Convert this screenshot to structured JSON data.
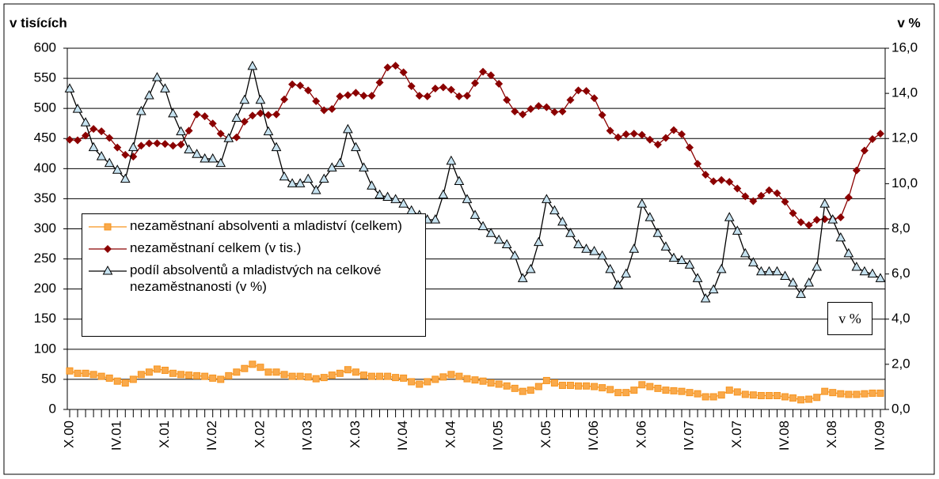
{
  "chart_data": {
    "type": "line",
    "y_label": "v tisících",
    "y2_label": "v %",
    "annotation": "v %",
    "categories": [
      "X.00",
      null,
      null,
      null,
      null,
      null,
      "IV.01",
      null,
      null,
      null,
      null,
      null,
      "X.01",
      null,
      null,
      null,
      null,
      null,
      "IV.02",
      null,
      null,
      null,
      null,
      null,
      "X.02",
      null,
      null,
      null,
      null,
      null,
      "IV.03",
      null,
      null,
      null,
      null,
      null,
      "X.03",
      null,
      null,
      null,
      null,
      null,
      "IV.04",
      null,
      null,
      null,
      null,
      null,
      "X.04",
      null,
      null,
      null,
      null,
      null,
      "IV.05",
      null,
      null,
      null,
      null,
      null,
      "X.05",
      null,
      null,
      null,
      null,
      null,
      "IV.06",
      null,
      null,
      null,
      null,
      null,
      "X.06",
      null,
      null,
      null,
      null,
      null,
      "IV.07",
      null,
      null,
      null,
      null,
      null,
      "X.07",
      null,
      null,
      null,
      null,
      null,
      "IV.08",
      null,
      null,
      null,
      null,
      null,
      "X.08",
      null,
      null,
      null,
      null,
      null,
      "IV.09"
    ],
    "series": [
      {
        "name": "nezaměstnaní absolventi a mladiství (celkem)",
        "color": "#f7941d",
        "marker": "square",
        "values": [
          64,
          60,
          60,
          58,
          55,
          52,
          47,
          44,
          50,
          58,
          62,
          67,
          65,
          60,
          58,
          57,
          56,
          55,
          52,
          50,
          56,
          62,
          68,
          75,
          70,
          62,
          62,
          58,
          55,
          55,
          54,
          51,
          53,
          57,
          60,
          66,
          62,
          57,
          55,
          55,
          55,
          53,
          52,
          46,
          42,
          46,
          50,
          54,
          58,
          55,
          51,
          49,
          47,
          44,
          42,
          39,
          35,
          30,
          32,
          38,
          48,
          44,
          40,
          40,
          39,
          39,
          38,
          36,
          33,
          28,
          28,
          32,
          41,
          38,
          35,
          32,
          31,
          30,
          28,
          26,
          21,
          21,
          24,
          32,
          29,
          25,
          24,
          23,
          23,
          23,
          21,
          19,
          16,
          17,
          20,
          30,
          28,
          26,
          25,
          25,
          26,
          27,
          27
        ]
      },
      {
        "name": "nezaměstnaní celkem (v tis.)",
        "color": "#8b0000",
        "marker": "diamond",
        "values": [
          448,
          447,
          455,
          466,
          462,
          451,
          435,
          423,
          420,
          438,
          442,
          442,
          441,
          438,
          440,
          463,
          490,
          487,
          475,
          458,
          450,
          452,
          478,
          488,
          492,
          489,
          490,
          515,
          540,
          538,
          530,
          512,
          497,
          499,
          520,
          522,
          526,
          521,
          521,
          543,
          568,
          571,
          560,
          537,
          521,
          520,
          533,
          535,
          531,
          520,
          521,
          542,
          561,
          555,
          541,
          514,
          495,
          490,
          499,
          504,
          502,
          494,
          495,
          514,
          530,
          529,
          517,
          489,
          463,
          452,
          457,
          458,
          456,
          448,
          440,
          451,
          464,
          457,
          435,
          408,
          390,
          379,
          381,
          378,
          367,
          354,
          346,
          355,
          364,
          359,
          345,
          326,
          311,
          306,
          315,
          316,
          316,
          319,
          352,
          397,
          430,
          449,
          458
        ]
      },
      {
        "name": "podíl absolventů a mladistvých na celkové nezaměstnanosti (v %)",
        "color": "#000000",
        "marker": "triangle",
        "axis": "y2",
        "values": [
          14.2,
          13.3,
          12.7,
          11.6,
          11.2,
          10.9,
          10.6,
          10.2,
          11.6,
          13.2,
          13.9,
          14.7,
          14.2,
          13.1,
          12.3,
          11.5,
          11.3,
          11.1,
          11.1,
          10.9,
          12.0,
          12.9,
          13.7,
          15.2,
          13.7,
          12.3,
          11.6,
          10.3,
          10.0,
          10.0,
          10.2,
          9.7,
          10.2,
          10.7,
          10.9,
          12.4,
          11.6,
          10.7,
          9.9,
          9.5,
          9.4,
          9.3,
          9.1,
          8.8,
          8.6,
          8.4,
          8.4,
          9.5,
          11.0,
          10.1,
          9.3,
          8.6,
          8.1,
          7.8,
          7.5,
          7.3,
          6.8,
          5.8,
          6.2,
          7.4,
          9.3,
          8.8,
          8.3,
          7.8,
          7.3,
          7.1,
          7.0,
          6.8,
          6.2,
          5.5,
          6.0,
          7.1,
          9.1,
          8.5,
          7.8,
          7.2,
          6.7,
          6.6,
          6.4,
          5.8,
          4.9,
          5.3,
          6.2,
          8.5,
          7.9,
          6.9,
          6.5,
          6.1,
          6.1,
          6.1,
          5.9,
          5.6,
          5.1,
          5.6,
          6.3,
          9.1,
          8.4,
          7.6,
          6.9,
          6.3,
          6.1,
          6.0,
          5.8
        ]
      }
    ],
    "ylim": [
      0,
      600
    ],
    "yticks": [
      0,
      50,
      100,
      150,
      200,
      250,
      300,
      350,
      400,
      450,
      500,
      550,
      600
    ],
    "y2lim": [
      0,
      16
    ],
    "y2ticks": [
      {
        "value": 0,
        "label": "0,0"
      },
      {
        "value": 2,
        "label": "2,0"
      },
      {
        "value": 4,
        "label": "4,0"
      },
      {
        "value": 6,
        "label": "6,0"
      },
      {
        "value": 8,
        "label": "8,0"
      },
      {
        "value": 10,
        "label": "10,0"
      },
      {
        "value": 12,
        "label": "12,0"
      },
      {
        "value": 14,
        "label": "14,0"
      },
      {
        "value": 16,
        "label": "16,0"
      }
    ],
    "grid": true
  }
}
